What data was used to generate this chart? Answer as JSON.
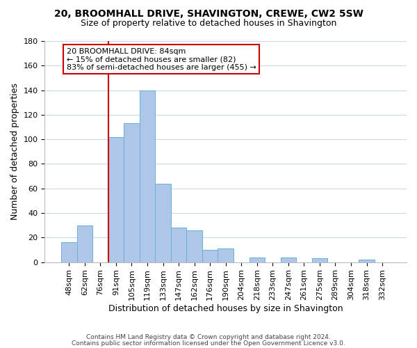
{
  "title": "20, BROOMHALL DRIVE, SHAVINGTON, CREWE, CW2 5SW",
  "subtitle": "Size of property relative to detached houses in Shavington",
  "xlabel": "Distribution of detached houses by size in Shavington",
  "ylabel": "Number of detached properties",
  "bar_labels": [
    "48sqm",
    "62sqm",
    "76sqm",
    "91sqm",
    "105sqm",
    "119sqm",
    "133sqm",
    "147sqm",
    "162sqm",
    "176sqm",
    "190sqm",
    "204sqm",
    "218sqm",
    "233sqm",
    "247sqm",
    "261sqm",
    "275sqm",
    "289sqm",
    "304sqm",
    "318sqm",
    "332sqm"
  ],
  "bar_heights": [
    16,
    30,
    0,
    102,
    113,
    140,
    64,
    28,
    26,
    10,
    11,
    0,
    4,
    0,
    4,
    0,
    3,
    0,
    0,
    2,
    0
  ],
  "bar_color": "#aec6e8",
  "bar_edge_color": "#6aafd6",
  "vline_x_index": 3,
  "vline_color": "#cc0000",
  "annotation_line1": "20 BROOMHALL DRIVE: 84sqm",
  "annotation_line2": "← 15% of detached houses are smaller (82)",
  "annotation_line3": "83% of semi-detached houses are larger (455) →",
  "annotation_box_color": "#ffffff",
  "annotation_box_edge": "#cc0000",
  "ylim": [
    0,
    180
  ],
  "yticks": [
    0,
    20,
    40,
    60,
    80,
    100,
    120,
    140,
    160,
    180
  ],
  "footer_line1": "Contains HM Land Registry data © Crown copyright and database right 2024.",
  "footer_line2": "Contains public sector information licensed under the Open Government Licence v3.0.",
  "background_color": "#ffffff",
  "grid_color": "#c8d8e8",
  "title_fontsize": 10,
  "subtitle_fontsize": 9,
  "axis_label_fontsize": 9,
  "tick_fontsize": 8,
  "annotation_fontsize": 8
}
